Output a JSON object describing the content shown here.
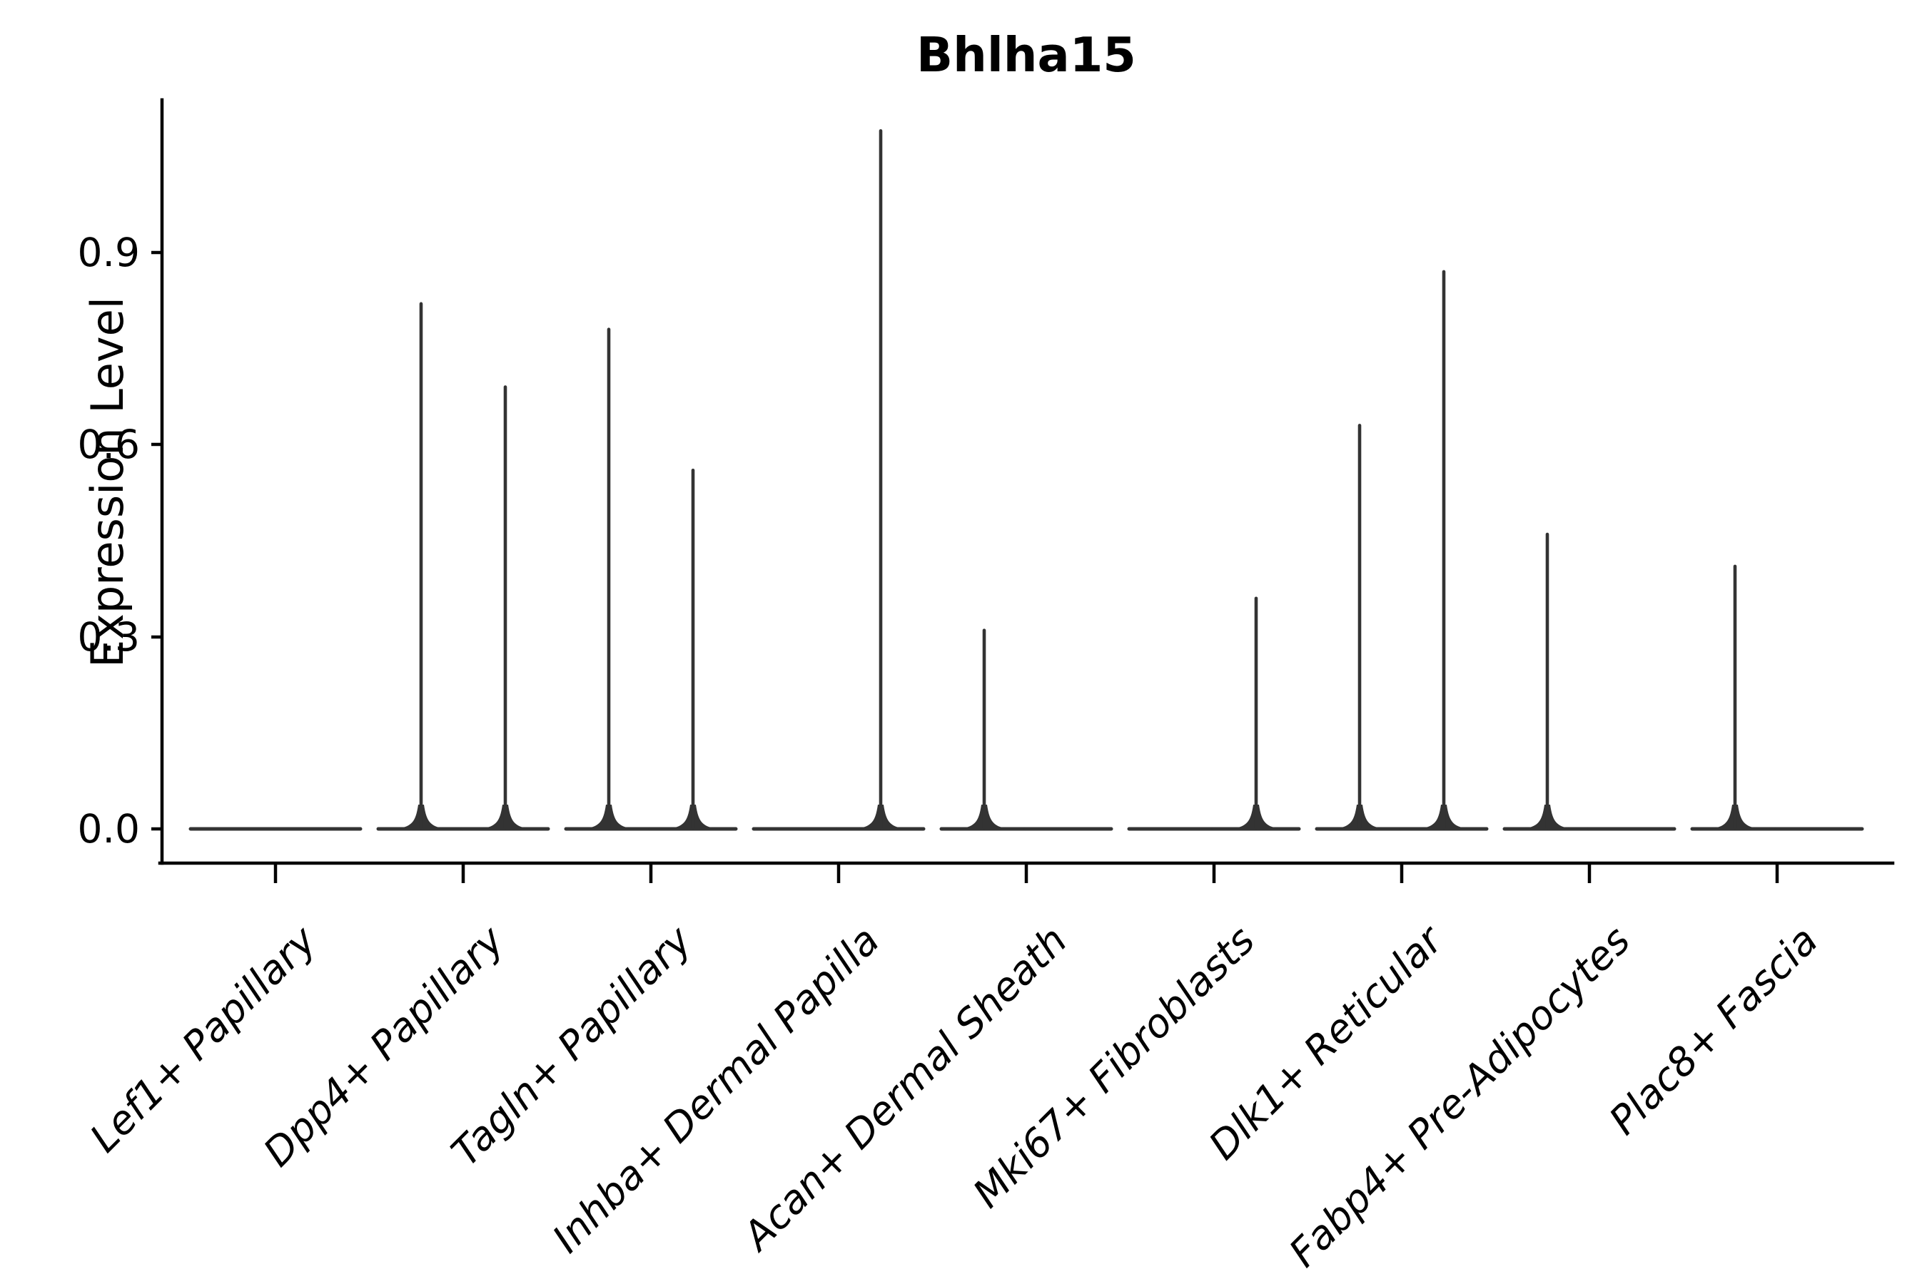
{
  "figure": {
    "background_color": "#ffffff",
    "axis_color": "#000000",
    "violin_line_color": "#333333"
  },
  "chart_data": {
    "type": "violin",
    "title": "Bhlha15",
    "xlabel": "",
    "ylabel": "Expression Level",
    "grid": false,
    "legend_position": "none",
    "yticks": [
      0.0,
      0.3,
      0.6,
      0.9
    ],
    "ytick_labels": [
      "0.0",
      "0.3",
      "0.6",
      "0.9"
    ],
    "ylim": [
      0.0,
      1.14
    ],
    "categories": [
      "Lef1+ Papillary",
      "Dpp4+ Papillary",
      "Tagln+ Papillary",
      "Inhba+ Dermal Papilla",
      "Acan+ Dermal Sheath",
      "Mki67+ Fibroblasts",
      "Dlk1+ Reticular",
      "Fabp4+ Pre-Adipocytes",
      "Plac8+ Fascia"
    ],
    "violins_per_category": 2,
    "baseline_value": 0.0,
    "series": [
      {
        "name": "left violin",
        "max_values": [
          0,
          0.82,
          0.78,
          0,
          0.31,
          0,
          0.63,
          0.46,
          0.41
        ]
      },
      {
        "name": "right violin",
        "max_values": [
          0,
          0.69,
          0.56,
          1.09,
          0,
          0.36,
          0.87,
          0,
          0
        ]
      }
    ]
  }
}
